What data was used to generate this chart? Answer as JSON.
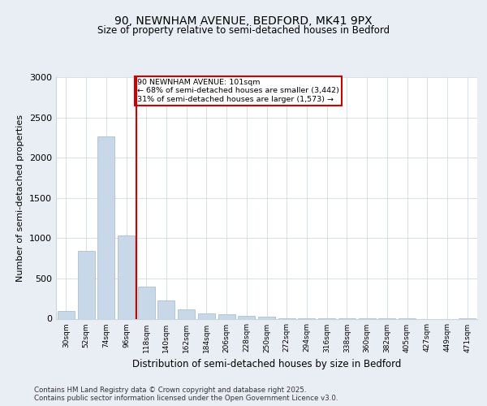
{
  "title1": "90, NEWNHAM AVENUE, BEDFORD, MK41 9PX",
  "title2": "Size of property relative to semi-detached houses in Bedford",
  "xlabel": "Distribution of semi-detached houses by size in Bedford",
  "ylabel": "Number of semi-detached properties",
  "categories": [
    "30sqm",
    "52sqm",
    "74sqm",
    "96sqm",
    "118sqm",
    "140sqm",
    "162sqm",
    "184sqm",
    "206sqm",
    "228sqm",
    "250sqm",
    "272sqm",
    "294sqm",
    "316sqm",
    "338sqm",
    "360sqm",
    "382sqm",
    "405sqm",
    "427sqm",
    "449sqm",
    "471sqm"
  ],
  "values": [
    100,
    840,
    2260,
    1030,
    400,
    230,
    120,
    70,
    60,
    40,
    30,
    10,
    8,
    5,
    3,
    2,
    1,
    1,
    0,
    0,
    5
  ],
  "bar_color": "#c8d8e8",
  "bar_edge_color": "#a0b8cc",
  "subject_line_color": "#cc0000",
  "annotation_text": "90 NEWNHAM AVENUE: 101sqm\n← 68% of semi-detached houses are smaller (3,442)\n31% of semi-detached houses are larger (1,573) →",
  "annotation_box_color": "#cc0000",
  "ylim": [
    0,
    3000
  ],
  "yticks": [
    0,
    500,
    1000,
    1500,
    2000,
    2500,
    3000
  ],
  "footer1": "Contains HM Land Registry data © Crown copyright and database right 2025.",
  "footer2": "Contains public sector information licensed under the Open Government Licence v3.0.",
  "bg_color": "#e8eef4",
  "plot_bg_color": "#ffffff",
  "grid_color": "#c8d4de"
}
